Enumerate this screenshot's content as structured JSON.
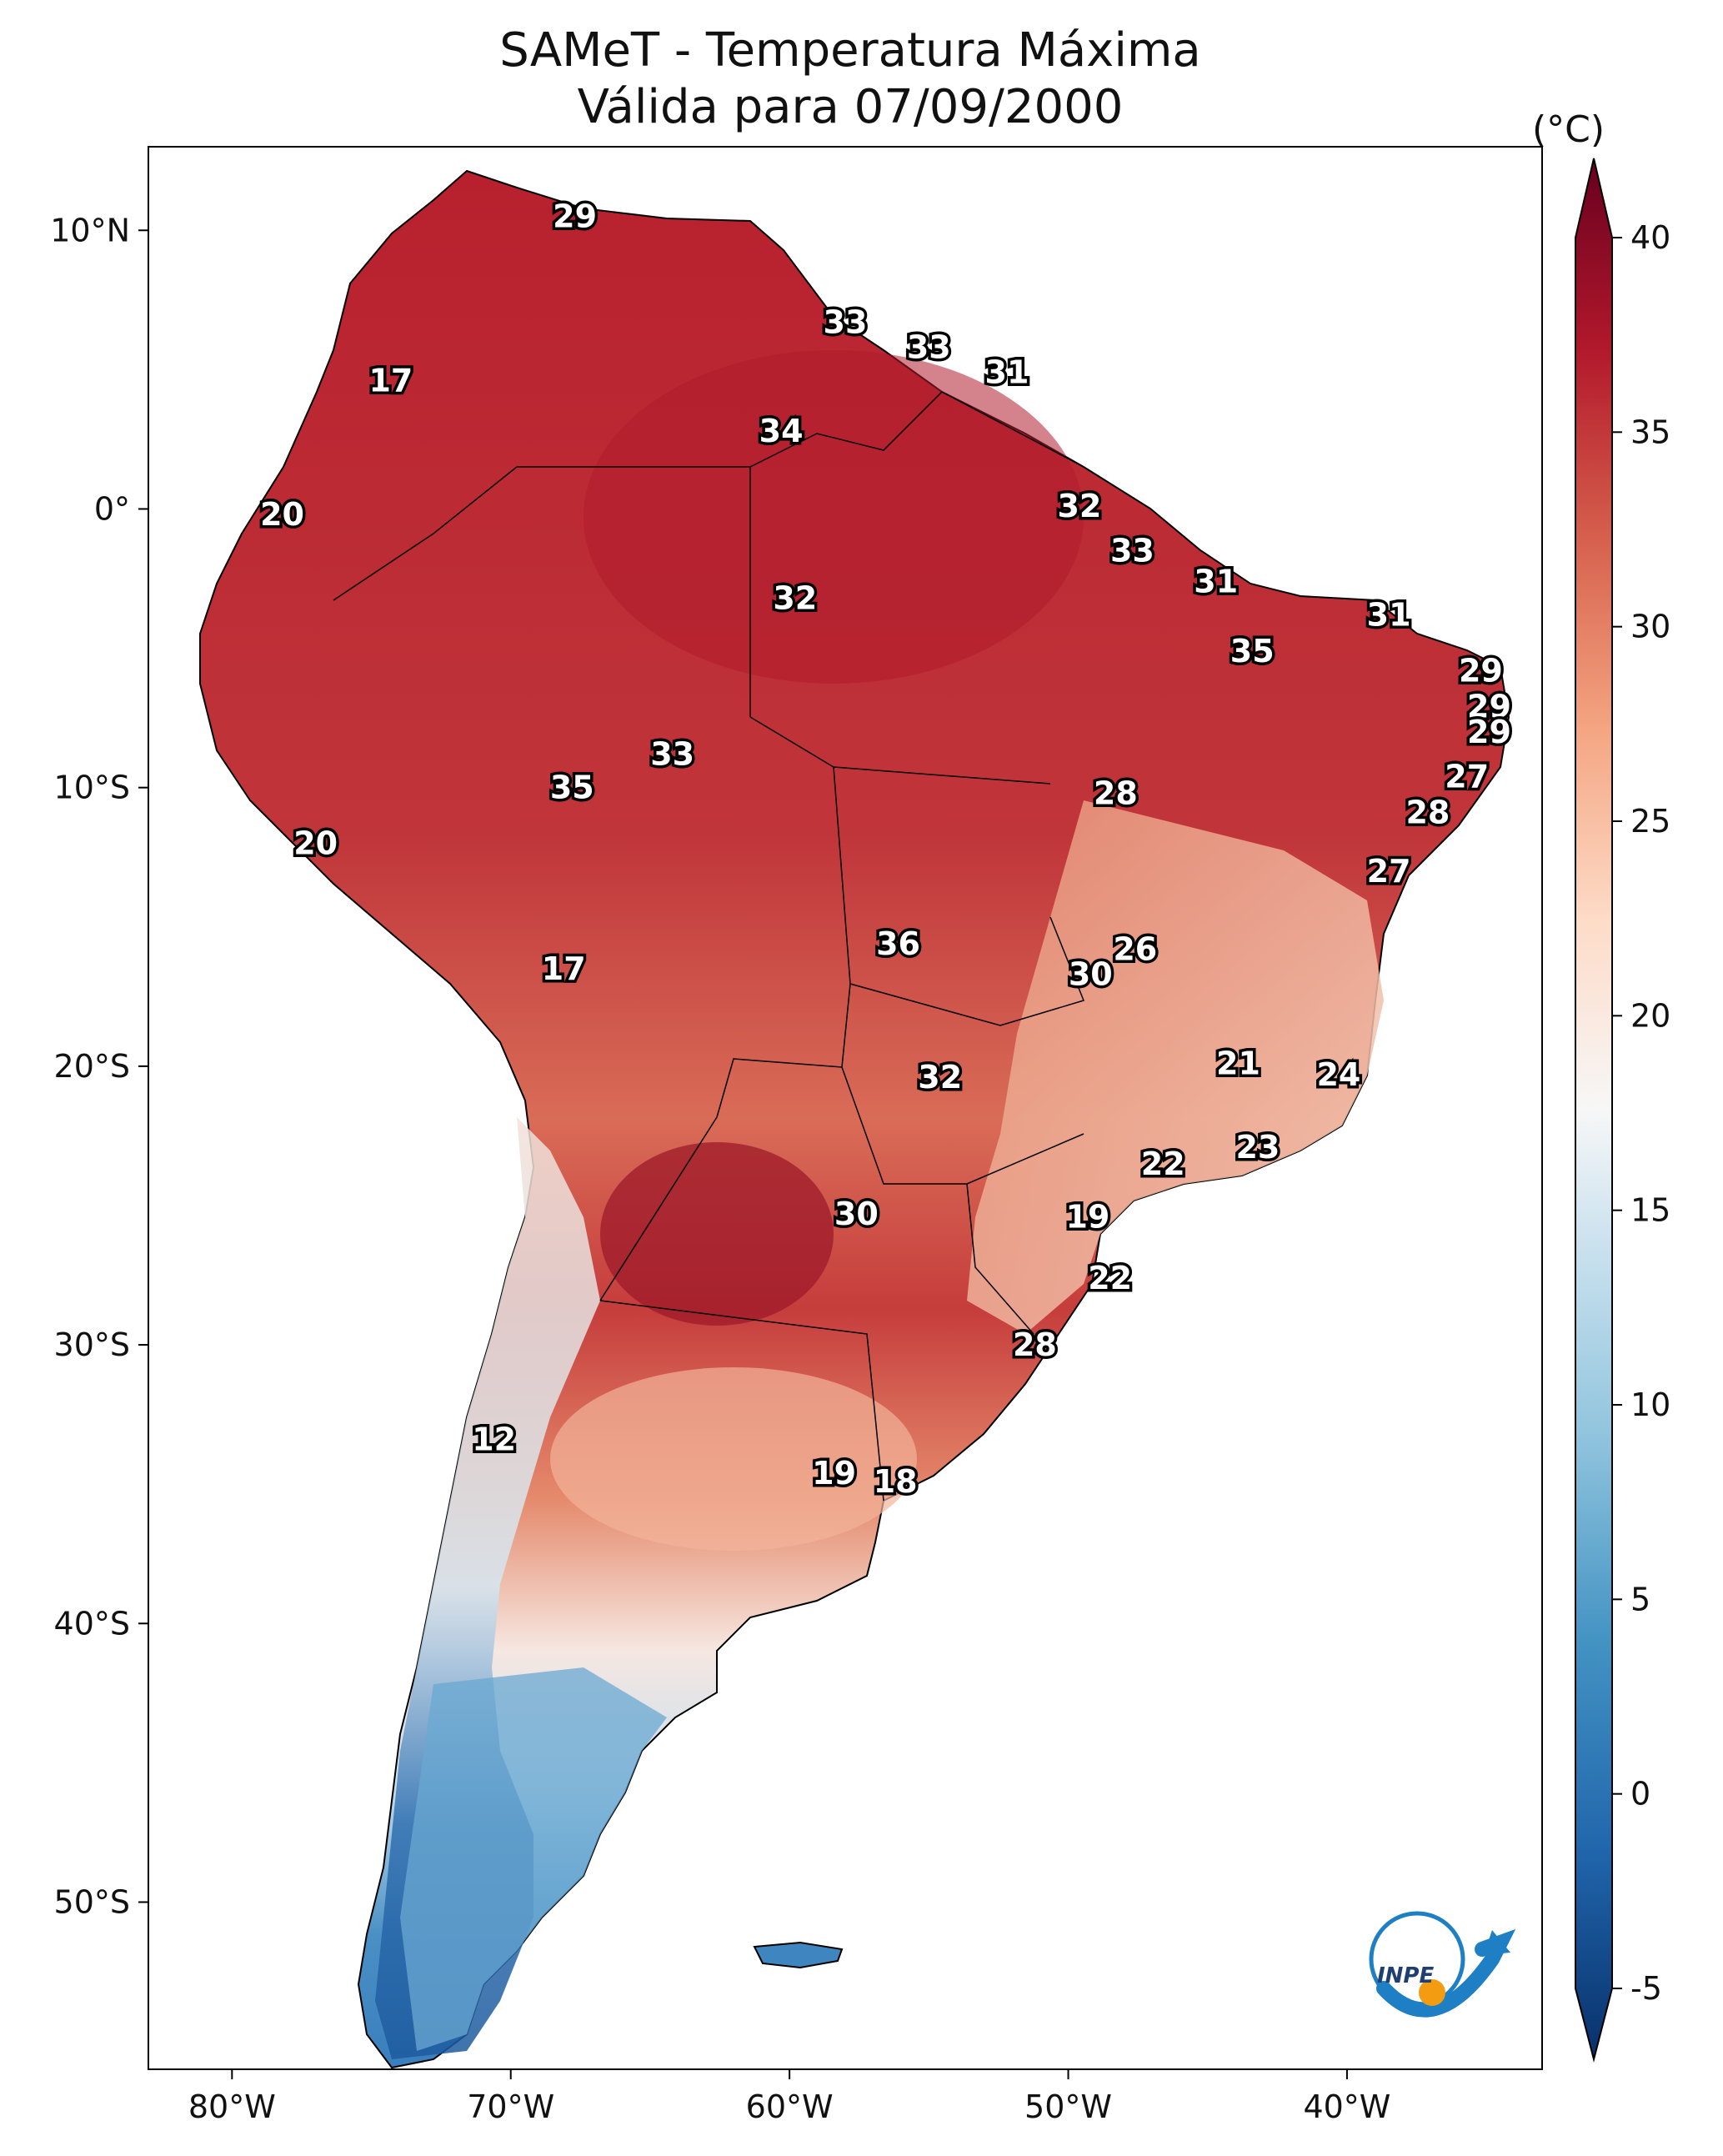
{
  "title": "SAMeT - Temperatura Máxima",
  "subtitle": "Válida para 07/09/2000",
  "colorbar": {
    "unit": "(°C)",
    "ticks": [
      "-5",
      "0",
      "5",
      "10",
      "15",
      "20",
      "25",
      "30",
      "35",
      "40"
    ],
    "range": [
      -5,
      40
    ],
    "colors": [
      "#08306b",
      "#2166ac",
      "#4393c3",
      "#92c5de",
      "#d1e5f0",
      "#f7f7f7",
      "#fddbc7",
      "#f4a582",
      "#d6604d",
      "#b2182b",
      "#67001f"
    ]
  },
  "axes": {
    "lon_labels": [
      "80°W",
      "70°W",
      "60°W",
      "50°W",
      "40°W"
    ],
    "lat_labels": [
      "10°N",
      "0°",
      "10°S",
      "20°S",
      "30°S",
      "40°S",
      "50°S"
    ]
  },
  "logo_text": "INPE",
  "chart_data": {
    "type": "heatmap",
    "title": "SAMeT - Temperatura Máxima",
    "subtitle": "Válida para 07/09/2000",
    "units": "°C",
    "colorbar_range": [
      -5,
      40
    ],
    "lon_range": [
      -83,
      -33
    ],
    "lat_range": [
      -56,
      13
    ],
    "station_values": [
      {
        "lon": -67.7,
        "lat": 10.5,
        "value": "29"
      },
      {
        "lon": -58.0,
        "lat": 6.7,
        "value": "33"
      },
      {
        "lon": -55.0,
        "lat": 5.8,
        "value": "33"
      },
      {
        "lon": -52.2,
        "lat": 4.9,
        "value": "31"
      },
      {
        "lon": -74.3,
        "lat": 4.6,
        "value": "17"
      },
      {
        "lon": -60.3,
        "lat": 2.8,
        "value": "34"
      },
      {
        "lon": -49.6,
        "lat": 0.1,
        "value": "32"
      },
      {
        "lon": -78.2,
        "lat": -0.2,
        "value": "20"
      },
      {
        "lon": -47.7,
        "lat": -1.5,
        "value": "33"
      },
      {
        "lon": -44.7,
        "lat": -2.6,
        "value": "31"
      },
      {
        "lon": -59.8,
        "lat": -3.2,
        "value": "32"
      },
      {
        "lon": -38.5,
        "lat": -3.8,
        "value": "31"
      },
      {
        "lon": -43.4,
        "lat": -5.1,
        "value": "35"
      },
      {
        "lon": -35.2,
        "lat": -5.8,
        "value": "29"
      },
      {
        "lon": -34.9,
        "lat": -7.1,
        "value": "29"
      },
      {
        "lon": -34.9,
        "lat": -8.0,
        "value": "29"
      },
      {
        "lon": -64.2,
        "lat": -8.8,
        "value": "33"
      },
      {
        "lon": -35.7,
        "lat": -9.6,
        "value": "27"
      },
      {
        "lon": -67.8,
        "lat": -10.0,
        "value": "35"
      },
      {
        "lon": -48.3,
        "lat": -10.2,
        "value": "28"
      },
      {
        "lon": -37.1,
        "lat": -10.9,
        "value": "28"
      },
      {
        "lon": -77.0,
        "lat": -12.0,
        "value": "20"
      },
      {
        "lon": -38.5,
        "lat": -13.0,
        "value": "27"
      },
      {
        "lon": -56.1,
        "lat": -15.6,
        "value": "36"
      },
      {
        "lon": -47.6,
        "lat": -15.8,
        "value": "26"
      },
      {
        "lon": -49.2,
        "lat": -16.7,
        "value": "30"
      },
      {
        "lon": -68.1,
        "lat": -16.5,
        "value": "17"
      },
      {
        "lon": -43.9,
        "lat": -19.9,
        "value": "21"
      },
      {
        "lon": -40.3,
        "lat": -20.3,
        "value": "24"
      },
      {
        "lon": -54.6,
        "lat": -20.4,
        "value": "32"
      },
      {
        "lon": -43.2,
        "lat": -22.9,
        "value": "23"
      },
      {
        "lon": -46.6,
        "lat": -23.5,
        "value": "22"
      },
      {
        "lon": -57.6,
        "lat": -25.3,
        "value": "30"
      },
      {
        "lon": -49.3,
        "lat": -25.4,
        "value": "19"
      },
      {
        "lon": -48.5,
        "lat": -27.6,
        "value": "22"
      },
      {
        "lon": -51.2,
        "lat": -30.0,
        "value": "28"
      },
      {
        "lon": -70.6,
        "lat": -33.4,
        "value": "12"
      },
      {
        "lon": -58.4,
        "lat": -34.6,
        "value": "19"
      },
      {
        "lon": -56.2,
        "lat": -34.9,
        "value": "18"
      }
    ]
  }
}
